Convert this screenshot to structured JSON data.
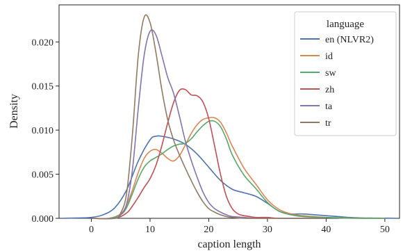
{
  "chart_data": {
    "type": "line",
    "title": "",
    "xlabel": "caption length",
    "ylabel": "Density",
    "xlim": [
      -5.5,
      52.5
    ],
    "ylim": [
      0,
      0.0242
    ],
    "xticks": [
      0,
      10,
      20,
      30,
      40,
      50
    ],
    "yticks": [
      0.0,
      0.005,
      0.01,
      0.015,
      0.02
    ],
    "ytick_labels": [
      "0.000",
      "0.005",
      "0.010",
      "0.015",
      "0.020"
    ],
    "grid": false,
    "legend": {
      "title": "language",
      "placement": "top-right"
    },
    "series": [
      {
        "name": "en (NLVR2)",
        "color": "#4c72b0",
        "x": [
          -5,
          -2,
          0,
          2,
          4,
          6,
          8,
          10,
          11,
          12,
          14,
          16,
          18,
          20,
          22,
          24,
          26,
          28,
          30,
          32,
          34,
          36,
          38,
          40,
          42,
          44,
          46,
          48,
          50,
          52
        ],
        "y": [
          0.0,
          5e-05,
          0.0001,
          0.0004,
          0.0012,
          0.0032,
          0.0065,
          0.0089,
          0.0093,
          0.0093,
          0.009,
          0.0084,
          0.0073,
          0.0058,
          0.0043,
          0.0033,
          0.0029,
          0.0025,
          0.0017,
          0.0008,
          0.0005,
          0.0005,
          0.0004,
          0.0003,
          0.0002,
          0.0001,
          5e-05,
          3e-05,
          2e-05,
          0.0
        ]
      },
      {
        "name": "id",
        "color": "#dd8452",
        "x": [
          0,
          3,
          5,
          6,
          7,
          8,
          9,
          10,
          11,
          12,
          13,
          14,
          15,
          16,
          17,
          18,
          19,
          20,
          21,
          22,
          23,
          24,
          26,
          28,
          30,
          32,
          34,
          36,
          40,
          45,
          50
        ],
        "y": [
          0.0,
          0.0,
          0.0005,
          0.0015,
          0.0032,
          0.0052,
          0.0068,
          0.0076,
          0.0078,
          0.0074,
          0.0068,
          0.0065,
          0.0071,
          0.0083,
          0.0096,
          0.0106,
          0.0112,
          0.0114,
          0.0114,
          0.0109,
          0.0097,
          0.0082,
          0.0057,
          0.0039,
          0.0021,
          0.001,
          0.0005,
          0.0003,
          0.0001,
          3e-05,
          0.0
        ]
      },
      {
        "name": "sw",
        "color": "#55a868",
        "x": [
          0,
          3,
          5,
          6,
          7,
          8,
          9,
          10,
          11,
          12,
          13,
          14,
          15,
          16,
          17,
          18,
          19,
          20,
          21,
          22,
          23,
          24,
          26,
          28,
          30,
          32,
          34,
          36,
          40,
          45,
          50
        ],
        "y": [
          0.0,
          0.0,
          0.0004,
          0.0012,
          0.0028,
          0.0045,
          0.0058,
          0.0065,
          0.0069,
          0.0073,
          0.0078,
          0.0082,
          0.0084,
          0.0085,
          0.009,
          0.0098,
          0.0105,
          0.011,
          0.011,
          0.0104,
          0.009,
          0.0072,
          0.0049,
          0.0034,
          0.0018,
          0.0008,
          0.0004,
          0.0002,
          0.0001,
          0.0,
          0.0
        ]
      },
      {
        "name": "zh",
        "color": "#c44e52",
        "x": [
          0,
          4,
          6,
          7,
          8,
          9,
          10,
          11,
          12,
          13,
          14,
          15,
          16,
          17,
          18,
          19,
          20,
          21,
          22,
          23,
          24,
          25,
          26,
          27,
          28,
          30,
          32,
          36,
          40
        ],
        "y": [
          0.0,
          0.0,
          0.0006,
          0.0014,
          0.0024,
          0.0035,
          0.0045,
          0.006,
          0.0082,
          0.0108,
          0.0131,
          0.0145,
          0.0146,
          0.014,
          0.0139,
          0.0132,
          0.0113,
          0.0082,
          0.005,
          0.0025,
          0.0011,
          0.0005,
          0.0003,
          0.0002,
          0.0001,
          0.0001,
          0.0,
          0.0,
          0.0
        ]
      },
      {
        "name": "ta",
        "color": "#8172b3",
        "x": [
          0,
          4,
          5,
          6,
          7,
          8,
          9,
          10,
          11,
          12,
          13,
          14,
          15,
          16,
          17,
          18,
          19,
          20,
          21,
          22,
          23,
          24,
          26,
          28,
          30,
          32,
          34,
          36,
          40
        ],
        "y": [
          0.0,
          0.0,
          0.0004,
          0.0016,
          0.0055,
          0.0125,
          0.0185,
          0.0212,
          0.0208,
          0.0185,
          0.016,
          0.0142,
          0.0116,
          0.0088,
          0.0066,
          0.0047,
          0.003,
          0.0018,
          0.0011,
          0.0007,
          0.0004,
          0.0002,
          0.0001,
          0.0,
          0.0,
          0.0,
          0.0,
          0.0,
          0.0
        ]
      },
      {
        "name": "tr",
        "color": "#937860",
        "x": [
          0,
          4,
          5,
          6,
          7,
          8,
          9,
          10,
          11,
          12,
          13,
          14,
          15,
          16,
          17,
          18,
          19,
          20,
          21,
          22,
          23,
          24,
          26,
          28,
          30,
          32,
          34,
          36,
          40
        ],
        "y": [
          0.0,
          0.0,
          0.0006,
          0.0028,
          0.0095,
          0.0185,
          0.0228,
          0.0222,
          0.0188,
          0.0146,
          0.0112,
          0.0089,
          0.0072,
          0.0057,
          0.0043,
          0.003,
          0.0019,
          0.0011,
          0.0007,
          0.0004,
          0.0002,
          0.0001,
          0.0,
          0.0,
          0.0,
          0.0,
          0.0,
          0.0,
          0.0
        ]
      }
    ]
  }
}
